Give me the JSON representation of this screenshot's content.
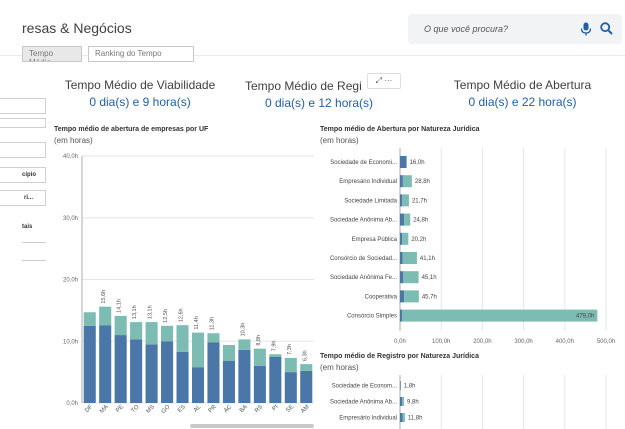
{
  "header": {
    "title": "resas & Negócios",
    "search_placeholder": "O que você procura?"
  },
  "tabs": [
    "Tempo Médio",
    "Ranking do Tempo"
  ],
  "kpis": [
    {
      "title": "Tempo Médio de Viabilidade",
      "value": "0 dia(s) e 9 hora(s)"
    },
    {
      "title": "Tempo Médio de Regi",
      "value": "0 dia(s) e 12 hora(s)"
    },
    {
      "title": "Tempo Médio de Abertura",
      "value": "0 dia(s) e 22 hora(s)"
    }
  ],
  "toolbar": {
    "expand": "⤢",
    "more": "···"
  },
  "sidebar": {
    "items": [
      "cípio",
      "ri..."
    ],
    "label": "tais"
  },
  "colors": {
    "dark": "#4a76a8",
    "light": "#7dbcb2",
    "accent": "#1f5fa8"
  },
  "chart_data": [
    {
      "type": "bar",
      "stacked": true,
      "title": "Tempo médio de abertura de empresas por UF",
      "subtitle": "(em horas)",
      "categories": [
        "DF",
        "MA",
        "PE",
        "TO",
        "MS",
        "GO",
        "ES",
        "AL",
        "PR",
        "AC",
        "BA",
        "RS",
        "PI",
        "SE",
        "AM"
      ],
      "series": [
        {
          "name": "",
          "values": [
            12.5,
            12.6,
            11.0,
            10.3,
            9.5,
            10.0,
            8.3,
            5.8,
            9.8,
            6.8,
            8.6,
            6.0,
            7.5,
            5.0,
            5.2
          ]
        },
        {
          "name": "",
          "values": [
            2.2,
            3.0,
            3.1,
            2.8,
            3.6,
            2.5,
            4.3,
            5.6,
            1.5,
            2.6,
            1.7,
            2.8,
            0.4,
            2.3,
            1.1
          ]
        }
      ],
      "totals": [
        "",
        "15,6h",
        "14,1h",
        "13,1h",
        "13,1h",
        "12,5h",
        "12,6h",
        "11,4h",
        "11,3h",
        "",
        "10,3h",
        "8,8h",
        "7,9h",
        "7,3h",
        "6,3h"
      ],
      "yticks": [
        "0,0h",
        "10,0h",
        "20,0h",
        "30,0h",
        "40,0h"
      ],
      "ylim": [
        0,
        40
      ]
    },
    {
      "type": "bar",
      "orientation": "horizontal",
      "stacked": true,
      "title": "Tempo médio de Abertura por Natureza Jurídica",
      "subtitle": "(em horas)",
      "categories": [
        "Sociedade de Economi...",
        "Empresário Individual",
        "Sociedade Limitada",
        "Sociedade Anônima Ab...",
        "Empresa Pública",
        "Consórcio de Sociedad...",
        "Sociedade Anônima Fe...",
        "Cooperativa",
        "Consórcio Simples"
      ],
      "series": [
        {
          "name": "",
          "values": [
            16.0,
            7.0,
            5.5,
            10.0,
            5.0,
            6.0,
            8.0,
            10.0,
            5.0
          ]
        },
        {
          "name": "",
          "values": [
            0.0,
            21.8,
            16.2,
            14.8,
            15.2,
            35.1,
            37.1,
            35.7,
            474.0
          ]
        }
      ],
      "labels": [
        "16,0h",
        "28,8h",
        "21,7h",
        "24,8h",
        "20,2h",
        "41,1h",
        "45,1h",
        "45,7h",
        "479,0h"
      ],
      "xticks": [
        "0,0h",
        "100,0h",
        "200,0h",
        "300,0h",
        "400,0h",
        "500,0h"
      ],
      "xlim": [
        0,
        500
      ]
    },
    {
      "type": "bar",
      "orientation": "horizontal",
      "stacked": true,
      "title": "Tempo médio de Registro por Natureza Jurídica",
      "subtitle": "(em horas)",
      "categories": [
        "Sociedade de Econom...",
        "Sociedade Anônima Ab...",
        "Empresário Individual"
      ],
      "series": [
        {
          "name": "",
          "values": [
            1.8,
            5.0,
            6.0
          ]
        },
        {
          "name": "",
          "values": [
            0.0,
            4.8,
            5.8
          ]
        }
      ],
      "labels": [
        "1,8h",
        "9,8h",
        "11,8h"
      ],
      "xlim": [
        0,
        500
      ]
    }
  ]
}
